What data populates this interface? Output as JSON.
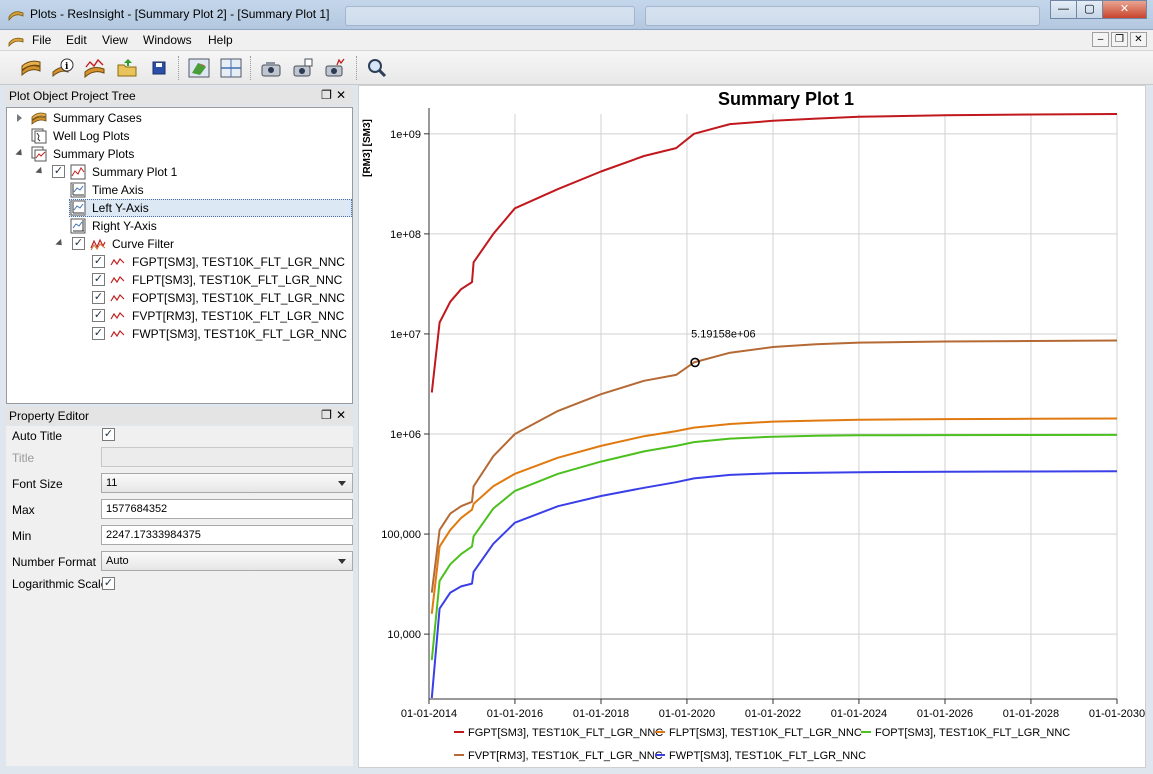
{
  "window": {
    "title": "Plots - ResInsight - [Summary Plot 2] - [Summary Plot 1]",
    "buttons": [
      "minimize",
      "maximize",
      "close"
    ]
  },
  "menu": {
    "items": [
      {
        "label": "File"
      },
      {
        "label": "Edit"
      },
      {
        "label": "View"
      },
      {
        "label": "Windows"
      },
      {
        "label": "Help"
      }
    ]
  },
  "toolbar": {
    "icons": [
      "summary-case-icon",
      "case-info-icon",
      "summary-plot-icon",
      "open-project-icon",
      "save-icon",
      "view-3d-icon",
      "view-grid-icon",
      "snapshot-icon",
      "snapshot-all-icon",
      "snapshot-plots-icon",
      "zoom-icon"
    ]
  },
  "project_tree": {
    "title": "Plot Object Project Tree",
    "items": [
      {
        "label": "Summary Cases",
        "level": 0,
        "icon": "summary-cases-icon",
        "expanded": false,
        "checkbox": false
      },
      {
        "label": "Well Log Plots",
        "level": 0,
        "icon": "well-log-plots-icon",
        "checkbox": false
      },
      {
        "label": "Summary Plots",
        "level": 0,
        "icon": "summary-plots-icon",
        "expanded": true,
        "checkbox": false
      },
      {
        "label": "Summary Plot 1",
        "level": 1,
        "icon": "summary-plot-icon",
        "expanded": true,
        "checkbox": true
      },
      {
        "label": "Time Axis",
        "level": 2,
        "icon": "axis-icon",
        "checkbox": false
      },
      {
        "label": "Left Y-Axis",
        "level": 2,
        "icon": "axis-icon",
        "checkbox": false,
        "selected": true
      },
      {
        "label": "Right Y-Axis",
        "level": 2,
        "icon": "axis-icon",
        "checkbox": false
      },
      {
        "label": "Curve Filter",
        "level": 2,
        "icon": "curve-filter-icon",
        "expanded": true,
        "checkbox": true
      },
      {
        "label": "FGPT[SM3], TEST10K_FLT_LGR_NNC",
        "level": 3,
        "icon": "curve-icon",
        "checkbox": true
      },
      {
        "label": "FLPT[SM3], TEST10K_FLT_LGR_NNC",
        "level": 3,
        "icon": "curve-icon",
        "checkbox": true
      },
      {
        "label": "FOPT[SM3], TEST10K_FLT_LGR_NNC",
        "level": 3,
        "icon": "curve-icon",
        "checkbox": true
      },
      {
        "label": "FVPT[RM3], TEST10K_FLT_LGR_NNC",
        "level": 3,
        "icon": "curve-icon",
        "checkbox": true
      },
      {
        "label": "FWPT[SM3], TEST10K_FLT_LGR_NNC",
        "level": 3,
        "icon": "curve-icon",
        "checkbox": true
      }
    ]
  },
  "property_editor": {
    "title": "Property Editor",
    "auto_title": {
      "label": "Auto Title",
      "checked": true
    },
    "title_field": {
      "label": "Title",
      "value": ""
    },
    "font_size": {
      "label": "Font Size",
      "value": "11"
    },
    "max": {
      "label": "Max",
      "value": "1577684352"
    },
    "min": {
      "label": "Min",
      "value": "2247.17333984375"
    },
    "number_format": {
      "label": "Number Format",
      "value": "Auto"
    },
    "log_scale": {
      "label": "Logarithmic Scale",
      "checked": true
    }
  },
  "chart_data": {
    "type": "line",
    "title": "Summary Plot 1",
    "ylabel": "[RM3] [SM3]",
    "xlabel": "",
    "y_scale": "log",
    "ylim": [
      2247.17333984375,
      1577684352
    ],
    "xlim": [
      "2014-01-01",
      "2030-01-01"
    ],
    "x_tick_labels": [
      "01-01-2014",
      "01-01-2016",
      "01-01-2018",
      "01-01-2020",
      "01-01-2022",
      "01-01-2024",
      "01-01-2026",
      "01-01-2028",
      "01-01-2030"
    ],
    "x_ticks": [
      "2014-01-01",
      "2016-01-01",
      "2018-01-01",
      "2020-01-01",
      "2022-01-01",
      "2024-01-01",
      "2026-01-01",
      "2028-01-01",
      "2030-01-01"
    ],
    "y_tick_labels": [
      "1e+09",
      "1e+08",
      "1e+07",
      "1e+06",
      "100,000",
      "10,000"
    ],
    "y_ticks": [
      1000000000,
      100000000,
      10000000,
      1000000,
      100000,
      10000
    ],
    "grid": true,
    "legend_position": "bottom",
    "annotation": {
      "text": "5.19158e+06",
      "x": "2020-03-10",
      "y": 5191580
    },
    "x": [
      "2014-01-25",
      "2014-04-01",
      "2014-07-01",
      "2014-10-01",
      "2015-01-01",
      "2015-01-15",
      "2015-07-01",
      "2016-01-01",
      "2017-01-01",
      "2018-01-01",
      "2019-01-01",
      "2019-10-01",
      "2020-03-01",
      "2021-01-01",
      "2022-01-01",
      "2023-01-01",
      "2024-01-01",
      "2026-01-01",
      "2028-01-01",
      "2030-01-01"
    ],
    "series": [
      {
        "name": "FGPT[SM3], TEST10K_FLT_LGR_NNC",
        "color": "#c0181d",
        "values": [
          2600000,
          13000000,
          21000000,
          28000000,
          33000000,
          52000000,
          100000000,
          180000000,
          280000000,
          420000000,
          600000000,
          720000000,
          1000000000,
          1250000000,
          1350000000,
          1420000000,
          1480000000,
          1530000000,
          1560000000,
          1577000000
        ]
      },
      {
        "name": "FLPT[SM3], TEST10K_FLT_LGR_NNC",
        "color": "#e07a10",
        "values": [
          16000,
          75000,
          110000,
          145000,
          175000,
          200000,
          300000,
          400000,
          580000,
          760000,
          950000,
          1070000,
          1160000,
          1260000,
          1330000,
          1360000,
          1390000,
          1410000,
          1420000,
          1430000
        ]
      },
      {
        "name": "FOPT[SM3], TEST10K_FLT_LGR_NNC",
        "color": "#4cc01e",
        "values": [
          5500,
          34000,
          50000,
          63000,
          75000,
          95000,
          180000,
          270000,
          400000,
          530000,
          670000,
          760000,
          830000,
          900000,
          940000,
          960000,
          970000,
          975000,
          978000,
          980000
        ]
      },
      {
        "name": "FVPT[RM3], TEST10K_FLT_LGR_NNC",
        "color": "#b56a35",
        "values": [
          26000,
          110000,
          160000,
          190000,
          210000,
          300000,
          600000,
          1000000,
          1700000,
          2500000,
          3400000,
          3900000,
          5191580,
          6500000,
          7400000,
          7900000,
          8200000,
          8400000,
          8500000,
          8600000
        ]
      },
      {
        "name": "FWPT[SM3], TEST10K_FLT_LGR_NNC",
        "color": "#3a3fe8",
        "values": [
          2300,
          18000,
          26000,
          30000,
          32000,
          42000,
          80000,
          130000,
          190000,
          240000,
          290000,
          330000,
          360000,
          390000,
          405000,
          410000,
          415000,
          420000,
          422000,
          425000
        ]
      }
    ]
  }
}
